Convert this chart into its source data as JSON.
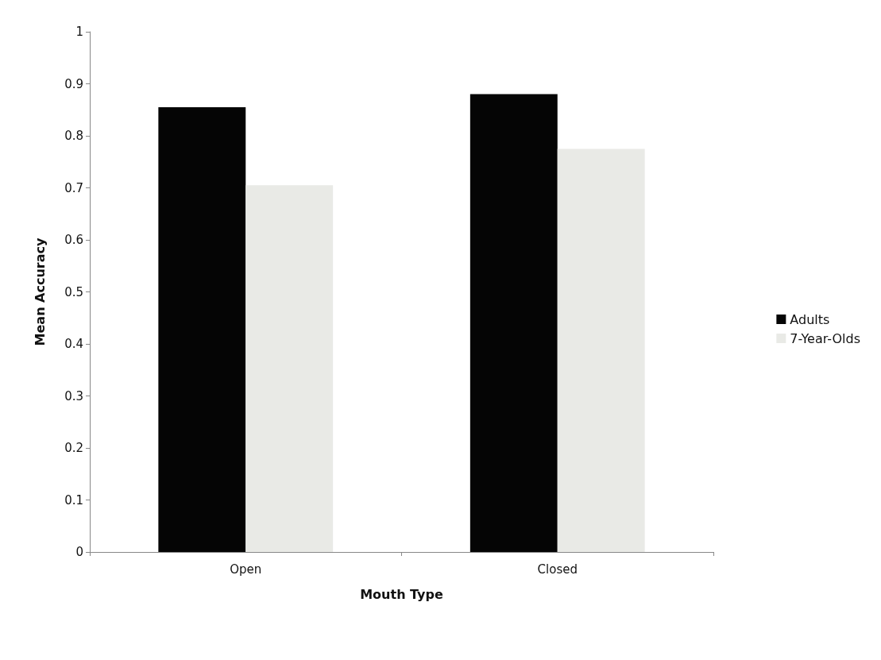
{
  "chart_data": {
    "type": "bar",
    "xlabel": "Mouth Type",
    "ylabel": "Mean Accuracy",
    "categories": [
      "Open",
      "Closed"
    ],
    "series": [
      {
        "name": "Adults",
        "color": "#050505",
        "values": [
          0.855,
          0.88
        ]
      },
      {
        "name": "7-Year-Olds",
        "color": "#e9eae6",
        "values": [
          0.705,
          0.775
        ]
      }
    ],
    "ylim": [
      0,
      1
    ],
    "yticks": [
      0,
      0.1,
      0.2,
      0.3,
      0.4,
      0.5,
      0.6,
      0.7,
      0.8,
      0.9,
      1
    ],
    "grid": false,
    "legend": "right"
  }
}
